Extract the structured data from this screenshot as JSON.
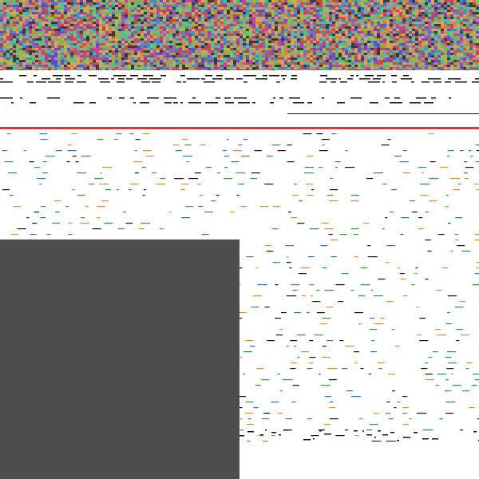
{
  "colors": {
    "background": "#ffffff",
    "accent": "#d83a3a",
    "overlay": "#4d4d4d",
    "text_dark": "#111111",
    "series_orange": "#e38a1e",
    "series_green": "#2d9a3d",
    "series_blue": "#1f7ab5"
  },
  "icons": {
    "noise": "noise-texture-icon"
  }
}
